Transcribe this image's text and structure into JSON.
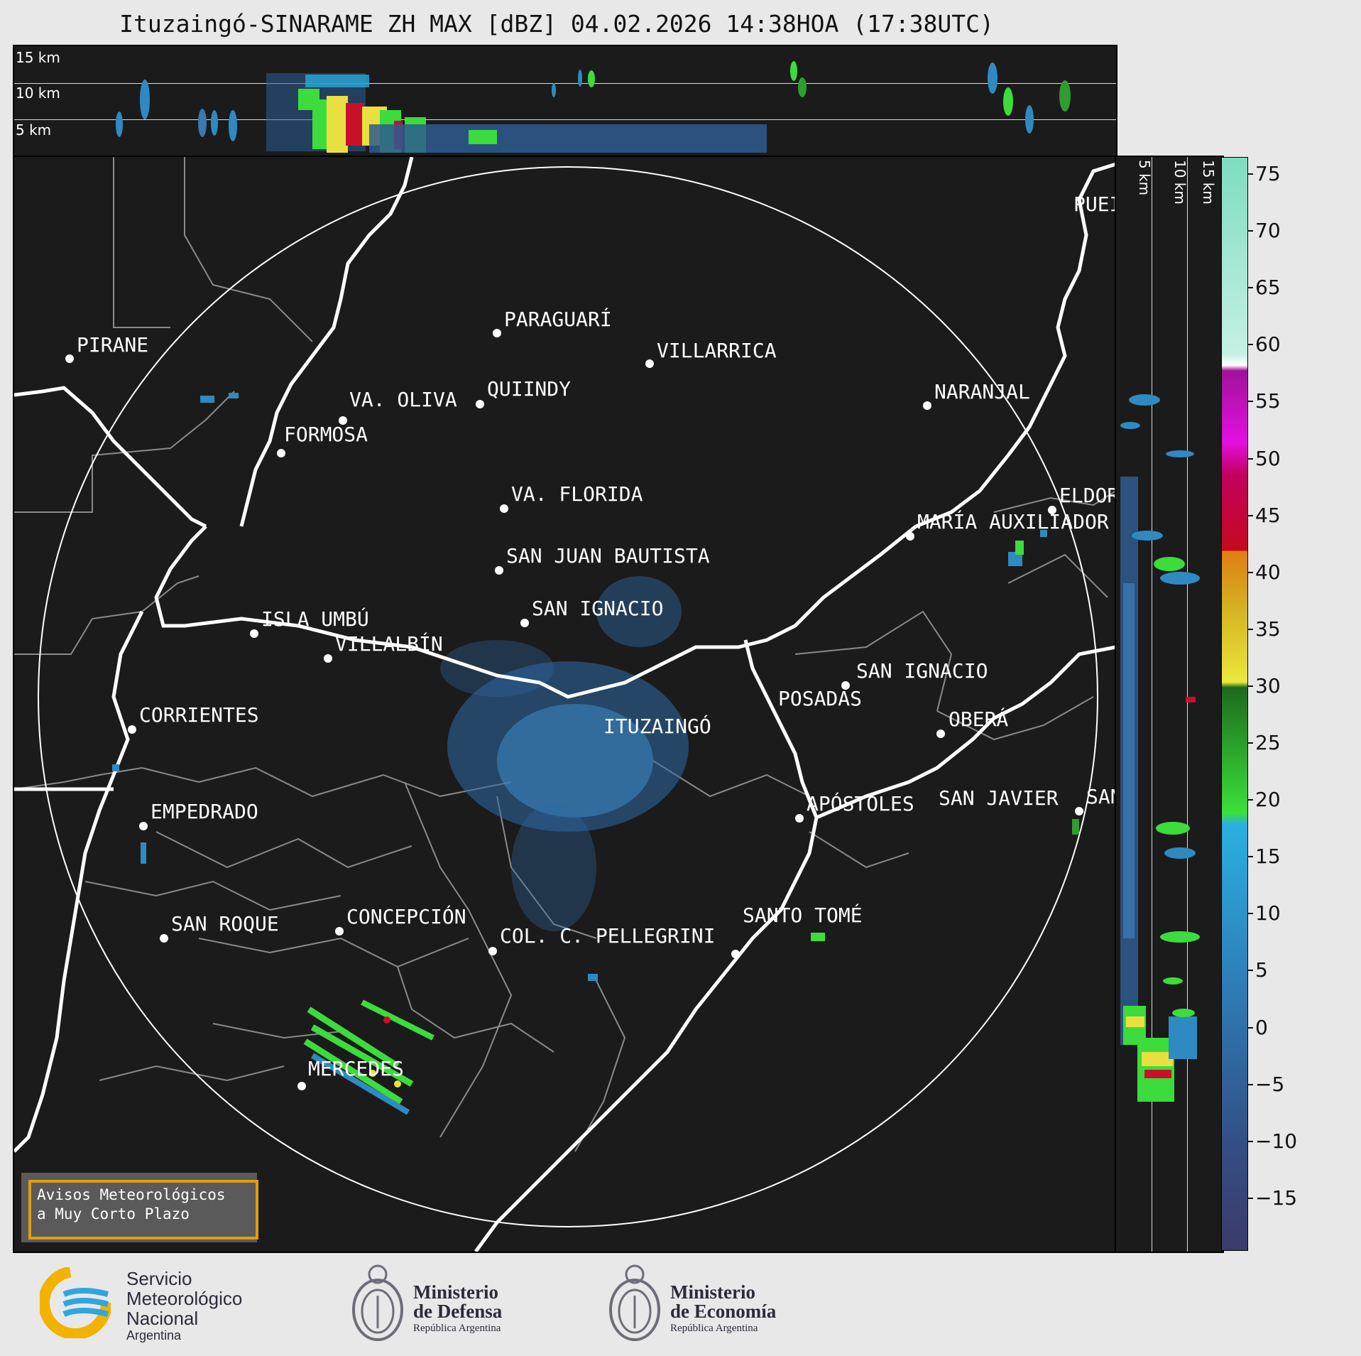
{
  "title": "Ituzaingó-SINARAME ZH MAX [dBZ] 04.02.2026 14:38HOA (17:38UTC)",
  "top_panel": {
    "altitude_labels": [
      "15 km",
      "10 km",
      "5 km"
    ]
  },
  "side_panel": {
    "altitude_labels": [
      "5 km",
      "10 km",
      "15 km"
    ]
  },
  "colorbar": {
    "unit": "dBZ",
    "ticks": [
      "75",
      "70",
      "65",
      "60",
      "55",
      "50",
      "45",
      "40",
      "35",
      "30",
      "25",
      "20",
      "15",
      "10",
      "5",
      "0",
      "−5",
      "−10",
      "−15"
    ],
    "range": [
      -19.5,
      76.5
    ]
  },
  "cities": [
    {
      "name": "PIRANE"
    },
    {
      "name": "PARAGUARÍ"
    },
    {
      "name": "VILLARRICA"
    },
    {
      "name": "VA. OLIVA"
    },
    {
      "name": "QUIINDY"
    },
    {
      "name": "NARANJAL"
    },
    {
      "name": "FORMOSA"
    },
    {
      "name": "VA. FLORIDA"
    },
    {
      "name": "ELDOR"
    },
    {
      "name": "MARÍA AUXILIADOR"
    },
    {
      "name": "SAN JUAN BAUTISTA"
    },
    {
      "name": "SAN IGNACIO"
    },
    {
      "name": "ISLA UMBÚ"
    },
    {
      "name": "VILLALBÍN"
    },
    {
      "name": "SAN IGNACIO"
    },
    {
      "name": "POSADAS"
    },
    {
      "name": "CORRIENTES"
    },
    {
      "name": "ITUZAINGÓ"
    },
    {
      "name": "OBERÁ"
    },
    {
      "name": "EMPEDRADO"
    },
    {
      "name": "APÓSTOLES"
    },
    {
      "name": "SAN JAVIER"
    },
    {
      "name": "SAN"
    },
    {
      "name": "CONCEPCIÓN"
    },
    {
      "name": "COL. C. PELLEGRINI"
    },
    {
      "name": "SANTO TOMÉ"
    },
    {
      "name": "SAN ROQUE"
    },
    {
      "name": "MERCEDES"
    },
    {
      "name": "PUEI"
    }
  ],
  "avisos": {
    "line1": "Avisos Meteorológicos",
    "line2": "a Muy Corto Plazo"
  },
  "footer": {
    "smn": {
      "line1": "Servicio",
      "line2": "Meteorológico",
      "line3": "Nacional",
      "line4": "Argentina"
    },
    "defensa": {
      "line1": "Ministerio",
      "line2": "de Defensa",
      "line3": "República Argentina"
    },
    "economia": {
      "line1": "Ministerio",
      "line2": "de Economía",
      "line3": "República Argentina"
    }
  },
  "colors": {
    "panel_bg": "#1b1b1b",
    "page_bg": "#e8e8e8",
    "river": "#ffffff",
    "border": "#8a8a8a",
    "avisos_border": "#e49b12",
    "smn_yellow": "#f2b200",
    "smn_blue": "#2fa6dd"
  }
}
